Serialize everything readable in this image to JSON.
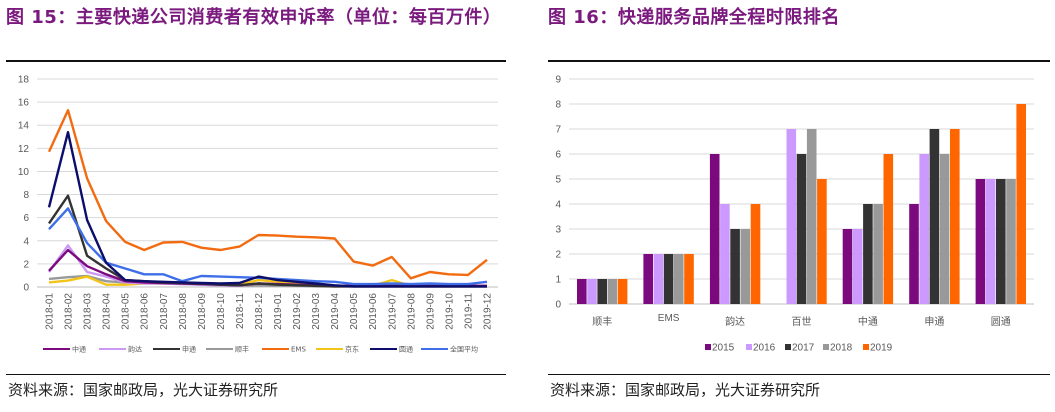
{
  "left_panel": {
    "title": "图 15：主要快递公司消费者有效申诉率（单位：每百万件）",
    "source": "资料来源：国家邮政局，光大证券研究所"
  },
  "right_panel": {
    "title": "图 16：快递服务品牌全程时限排名",
    "source": "资料来源：国家邮政局，光大证券研究所"
  },
  "chart_data": [
    {
      "type": "line",
      "title": "主要快递公司消费者有效申诉率（单位：每百万件）",
      "xlabel": "",
      "ylabel": "",
      "ylim": [
        0,
        18
      ],
      "yticks": [
        "0",
        "2",
        "4",
        "6",
        "8",
        "10",
        "12",
        "14",
        "16",
        "18"
      ],
      "grid": true,
      "legend": "bottom",
      "categories": [
        "2018-01",
        "2018-02",
        "2018-03",
        "2018-04",
        "2018-05",
        "2018-06",
        "2018-07",
        "2018-08",
        "2018-09",
        "2018-10",
        "2018-11",
        "2018-12",
        "2019-01",
        "2019-02",
        "2019-03",
        "2019-04",
        "2019-05",
        "2019-06",
        "2019-07",
        "2019-08",
        "2019-09",
        "2019-10",
        "2019-11",
        "2019-12"
      ],
      "series": [
        {
          "name": "中通",
          "color": "#7B0A7E",
          "values": [
            1.4,
            3.2,
            1.8,
            1.1,
            0.5,
            0.4,
            0.35,
            0.3,
            0.25,
            0.2,
            0.15,
            0.3,
            0.25,
            0.2,
            0.15,
            0.1,
            0.1,
            0.1,
            0.15,
            0.1,
            0.1,
            0.1,
            0.1,
            0.1
          ]
        },
        {
          "name": "韵达",
          "color": "#CC99F2",
          "values": [
            1.3,
            3.6,
            1.3,
            0.9,
            0.4,
            0.3,
            0.3,
            0.25,
            0.2,
            0.15,
            0.1,
            0.3,
            0.2,
            0.15,
            0.1,
            0.1,
            0.1,
            0.1,
            0.1,
            0.1,
            0.1,
            0.1,
            0.1,
            0.1
          ]
        },
        {
          "name": "申通",
          "color": "#333333",
          "values": [
            5.5,
            7.9,
            2.7,
            1.6,
            0.6,
            0.5,
            0.4,
            0.35,
            0.3,
            0.2,
            0.15,
            0.3,
            0.2,
            0.15,
            0.1,
            0.05,
            0.05,
            0.05,
            0.05,
            0.05,
            0.05,
            0.05,
            0.05,
            0.05
          ]
        },
        {
          "name": "顺丰",
          "color": "#999999",
          "values": [
            0.7,
            0.85,
            0.95,
            0.5,
            0.4,
            0.35,
            0.3,
            0.25,
            0.2,
            0.15,
            0.1,
            0.15,
            0.1,
            0.1,
            0.05,
            0.05,
            0.05,
            0.05,
            0.05,
            0.05,
            0.05,
            0.05,
            0.05,
            0.05
          ]
        },
        {
          "name": "EMS",
          "color": "#F26B11",
          "values": [
            11.7,
            15.3,
            9.4,
            5.7,
            3.9,
            3.2,
            3.85,
            3.9,
            3.4,
            3.2,
            3.5,
            4.5,
            4.45,
            4.35,
            4.3,
            4.2,
            2.2,
            1.85,
            2.6,
            0.75,
            1.3,
            1.1,
            1.05,
            2.35
          ]
        },
        {
          "name": "京东",
          "color": "#F2C318",
          "values": [
            0.4,
            0.55,
            0.9,
            0.2,
            0.2,
            0.3,
            0.3,
            0.3,
            0.25,
            0.2,
            0.2,
            0.6,
            0.45,
            0.3,
            0.15,
            0.05,
            0.1,
            0.1,
            0.6,
            0.1,
            0.1,
            0.1,
            0.1,
            0.1
          ]
        },
        {
          "name": "圆通",
          "color": "#0D0D6B",
          "values": [
            6.9,
            13.4,
            5.8,
            2.1,
            0.6,
            0.5,
            0.45,
            0.4,
            0.35,
            0.3,
            0.35,
            0.9,
            0.6,
            0.45,
            0.3,
            0.15,
            0.05,
            0.05,
            0.05,
            0.05,
            0.05,
            0.05,
            0.05,
            0.05
          ]
        },
        {
          "name": "全国平均",
          "color": "#3F6FE8",
          "values": [
            5.0,
            6.8,
            3.8,
            2.1,
            1.6,
            1.1,
            1.1,
            0.5,
            0.95,
            0.9,
            0.85,
            0.8,
            0.7,
            0.6,
            0.5,
            0.45,
            0.25,
            0.25,
            0.3,
            0.25,
            0.3,
            0.25,
            0.25,
            0.45
          ]
        }
      ]
    },
    {
      "type": "bar",
      "title": "快递服务品牌全程时限排名",
      "xlabel": "",
      "ylabel": "",
      "ylim": [
        0,
        9
      ],
      "yticks": [
        "0",
        "1",
        "2",
        "3",
        "4",
        "5",
        "6",
        "7",
        "8",
        "9"
      ],
      "grid": true,
      "legend": "bottom",
      "categories": [
        "顺丰",
        "EMS",
        "韵达",
        "百世",
        "中通",
        "申通",
        "圆通"
      ],
      "series": [
        {
          "name": "2015",
          "color": "#7B0A7E",
          "values": [
            1,
            2,
            6,
            0,
            3,
            4,
            5
          ]
        },
        {
          "name": "2016",
          "color": "#CC99FF",
          "values": [
            1,
            2,
            4,
            7,
            3,
            6,
            5
          ]
        },
        {
          "name": "2017",
          "color": "#333333",
          "values": [
            1,
            2,
            3,
            6,
            4,
            7,
            5
          ]
        },
        {
          "name": "2018",
          "color": "#999999",
          "values": [
            1,
            2,
            3,
            7,
            4,
            6,
            5
          ]
        },
        {
          "name": "2019",
          "color": "#FF6600",
          "values": [
            1,
            2,
            4,
            5,
            6,
            7,
            8
          ]
        }
      ]
    }
  ]
}
